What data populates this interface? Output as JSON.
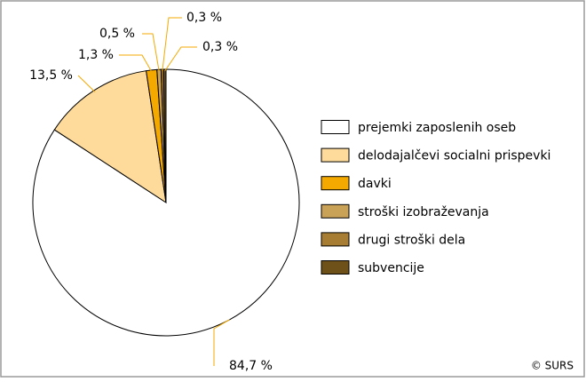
{
  "chart_data": {
    "type": "pie",
    "categories": [
      "prejemki zaposlenih oseb",
      "delodajalčevi socialni prispevki",
      "davki",
      "stroški izobraževanja",
      "drugi stroški dela",
      "subvencije"
    ],
    "values": [
      84.7,
      13.5,
      1.3,
      0.5,
      0.3,
      0.3
    ],
    "value_labels": [
      "84,7 %",
      "13,5 %",
      "1,3 %",
      "0,5 %",
      "0,3 %",
      "0,3 %"
    ],
    "colors": [
      "#ffffff",
      "#fedb9b",
      "#f4a900",
      "#c9a157",
      "#a67d32",
      "#6e5019"
    ],
    "source": "© SURS"
  }
}
